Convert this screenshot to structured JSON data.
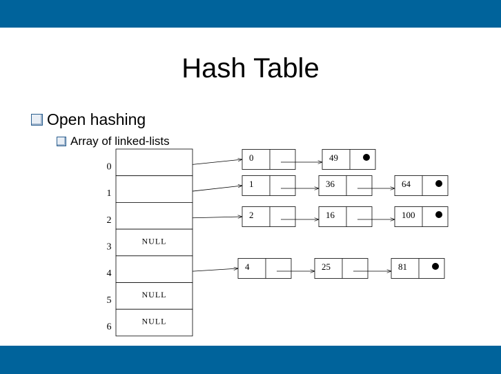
{
  "title": "Hash Table",
  "bullets": [
    {
      "text": "Open hashing",
      "level": 1
    },
    {
      "text": "Array of linked-lists",
      "level": 2
    }
  ],
  "colors": {
    "bar": "#00639b",
    "checkbox_border": "#2a5f8f"
  },
  "diagram": {
    "buckets": [
      {
        "index": "0",
        "label": "",
        "list": [
          "0",
          "49"
        ]
      },
      {
        "index": "1",
        "label": "",
        "list": [
          "1",
          "36",
          "64"
        ]
      },
      {
        "index": "2",
        "label": "",
        "list": [
          "2",
          "16",
          "100"
        ]
      },
      {
        "index": "3",
        "label": "NULL",
        "list": []
      },
      {
        "index": "4",
        "label": "",
        "list": [
          "4",
          "25",
          "81"
        ]
      },
      {
        "index": "5",
        "label": "NULL",
        "list": []
      },
      {
        "index": "6",
        "label": "NULL",
        "list": []
      }
    ]
  }
}
